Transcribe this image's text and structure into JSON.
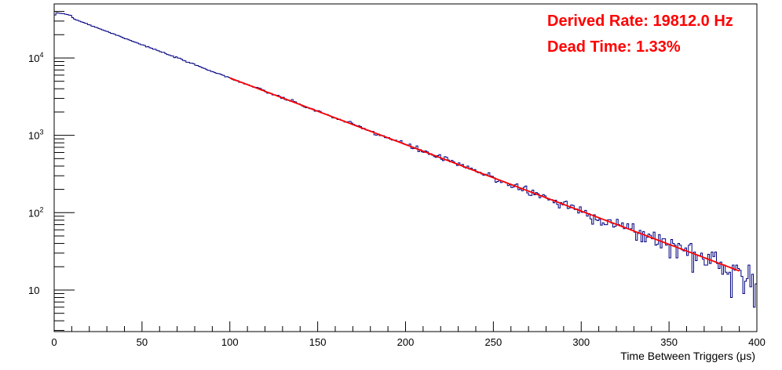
{
  "chart_data": {
    "type": "line",
    "title": "",
    "xlabel": "Time Between Triggers (μs)",
    "ylabel": "",
    "xlim": [
      0,
      400
    ],
    "ylim": [
      2.9,
      50000
    ],
    "yscale": "log",
    "grid": false,
    "x_ticks": [
      {
        "value": 0,
        "label": "0"
      },
      {
        "value": 50,
        "label": "50"
      },
      {
        "value": 100,
        "label": "100"
      },
      {
        "value": 150,
        "label": "150"
      },
      {
        "value": 200,
        "label": "200"
      },
      {
        "value": 250,
        "label": "250"
      },
      {
        "value": 300,
        "label": "300"
      },
      {
        "value": 350,
        "label": "350"
      },
      {
        "value": 400,
        "label": "400"
      }
    ],
    "y_ticks": [
      {
        "value": 10,
        "base": "10",
        "exp": ""
      },
      {
        "value": 100,
        "base": "10",
        "exp": "2"
      },
      {
        "value": 1000,
        "base": "10",
        "exp": "3"
      },
      {
        "value": 10000,
        "base": "10",
        "exp": "4"
      }
    ],
    "series": [
      {
        "type": "histogram",
        "color": "#000080",
        "bin_width": 1,
        "x_start": 0,
        "model": {
          "amplitude": 40000,
          "rate_per_us": 0.019812,
          "noise_seed": 7
        },
        "prefix_values": [
          36000,
          38500,
          38000,
          37800,
          37500,
          37300,
          36800,
          36500,
          35900,
          35500
        ]
      },
      {
        "type": "fit",
        "color": "#ff0000",
        "x_range": [
          100,
          390
        ],
        "amplitude": 40000,
        "rate_per_us": 0.019812
      }
    ],
    "annotations": [
      {
        "text": "Derived Rate: 19812.0 Hz",
        "color": "#ff0000"
      },
      {
        "text": "Dead Time: 1.33%",
        "color": "#ff0000"
      }
    ]
  }
}
